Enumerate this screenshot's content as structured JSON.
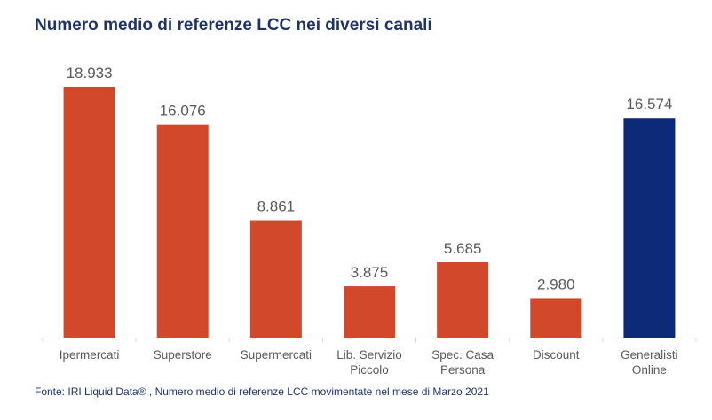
{
  "chart_data": {
    "type": "bar",
    "title": "Numero medio di referenze LCC nei diversi canali",
    "categories": [
      [
        "Ipermercati"
      ],
      [
        "Superstore"
      ],
      [
        "Supermercati"
      ],
      [
        "Lib. Servizio",
        "Piccolo"
      ],
      [
        "Spec. Casa",
        "Persona"
      ],
      [
        "Discount"
      ],
      [
        "Generalisti",
        "Online"
      ]
    ],
    "values": [
      18933,
      16076,
      8861,
      3875,
      5685,
      2980,
      16574
    ],
    "value_labels": [
      "18.933",
      "16.076",
      "8.861",
      "3.875",
      "5.685",
      "2.980",
      "16.574"
    ],
    "bar_colors": [
      "#d1482a",
      "#d1482a",
      "#d1482a",
      "#d1482a",
      "#d1482a",
      "#d1482a",
      "#0c2a78"
    ],
    "ylim": [
      0,
      20000
    ],
    "grid": false,
    "legend": "none",
    "source": "Fonte: IRI Liquid Data® , Numero medio di referenze LCC movimentate nel mese di Marzo 2021"
  }
}
